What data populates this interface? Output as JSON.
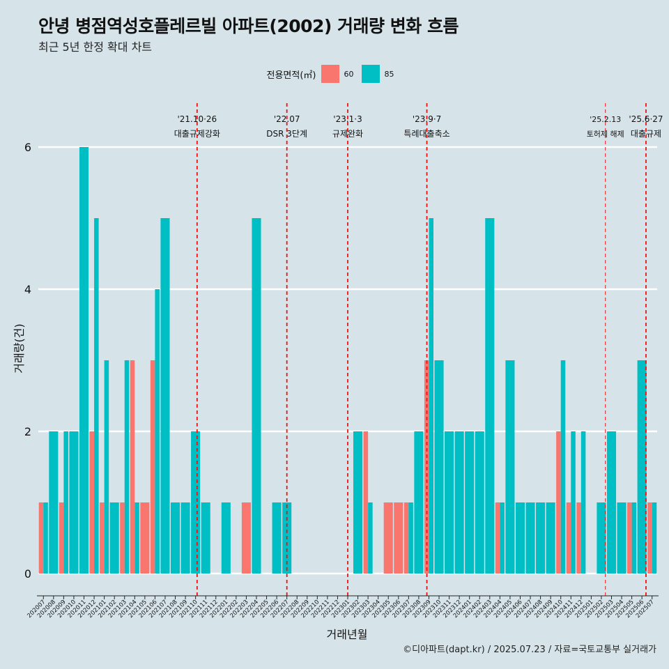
{
  "title": "안녕 병점역성호플레르빌 아파트(2002) 거래량 변화 흐름",
  "subtitle": "최근 5년 한정 확대 차트",
  "caption": "©디아파트(dapt.kr) / 2025.07.23 / 자료=국토교통부 실거래가",
  "legend": {
    "title": "전용면적(㎡)",
    "items": [
      {
        "label": "60",
        "color": "#f8766d"
      },
      {
        "label": "85",
        "color": "#00bfc4"
      }
    ]
  },
  "chart_data": {
    "type": "bar",
    "title": "안녕 병점역성호플레르빌 아파트(2002) 거래량 변화 흐름",
    "xlabel": "거래년월",
    "ylabel": "거래량(건)",
    "ylim": [
      0,
      6
    ],
    "yticks": [
      "0",
      "2",
      "4",
      "6"
    ],
    "categories": [
      "202007",
      "202008",
      "202009",
      "202010",
      "202011",
      "202012",
      "202101",
      "202102",
      "202103",
      "202104",
      "202105",
      "202106",
      "202107",
      "202108",
      "202109",
      "202110",
      "202111",
      "202112",
      "202201",
      "202202",
      "202203",
      "202204",
      "202205",
      "202206",
      "202207",
      "202208",
      "202209",
      "202210",
      "202211",
      "202212",
      "202301",
      "202302",
      "202303",
      "202304",
      "202305",
      "202306",
      "202307",
      "202308",
      "202309",
      "202310",
      "202311",
      "202312",
      "202401",
      "202402",
      "202403",
      "202404",
      "202405",
      "202406",
      "202407",
      "202408",
      "202409",
      "202410",
      "202411",
      "202412",
      "202501",
      "202502",
      "202503",
      "202504",
      "202505",
      "202506",
      "202507"
    ],
    "series": [
      {
        "name": "60",
        "color": "#f8766d",
        "values": [
          1,
          0,
          1,
          0,
          0,
          2,
          1,
          0,
          1,
          3,
          1,
          3,
          0,
          0,
          0,
          0,
          0,
          0,
          0,
          0,
          1,
          0,
          0,
          0,
          0,
          0,
          0,
          0,
          0,
          0,
          0,
          0,
          2,
          0,
          1,
          1,
          1,
          0,
          3,
          0,
          0,
          0,
          0,
          0,
          0,
          1,
          0,
          0,
          0,
          0,
          0,
          2,
          1,
          1,
          0,
          0,
          0,
          0,
          1,
          0,
          1
        ]
      },
      {
        "name": "85",
        "color": "#00bfc4",
        "values": [
          1,
          2,
          2,
          2,
          6,
          5,
          3,
          1,
          3,
          1,
          0,
          4,
          5,
          1,
          1,
          2,
          1,
          0,
          1,
          0,
          0,
          5,
          0,
          1,
          1,
          0,
          0,
          0,
          0,
          0,
          0,
          2,
          1,
          0,
          0,
          0,
          1,
          2,
          5,
          3,
          2,
          2,
          2,
          2,
          5,
          1,
          3,
          1,
          1,
          1,
          1,
          3,
          2,
          2,
          0,
          1,
          2,
          1,
          1,
          3,
          1
        ]
      }
    ],
    "events": [
      {
        "date": "'21.10·26",
        "label": "대출규제강화",
        "at": "202110",
        "offset": 0.15
      },
      {
        "date": "'22.07",
        "label": "DSR 3단계",
        "at": "202207",
        "offset": 0
      },
      {
        "date": "'23.1·3",
        "label": "규제완화",
        "at": "202301",
        "offset": 0
      },
      {
        "date": "'23.9·7",
        "label": "특례대출축소",
        "at": "202309",
        "offset": -0.2
      },
      {
        "date": "'25.2.13",
        "label": "토허제 해제",
        "at": "202502",
        "offset": 0.4,
        "thin": true
      },
      {
        "date": "'25.6·27",
        "label": "대출규제",
        "at": "202506",
        "offset": 0.4
      }
    ]
  }
}
